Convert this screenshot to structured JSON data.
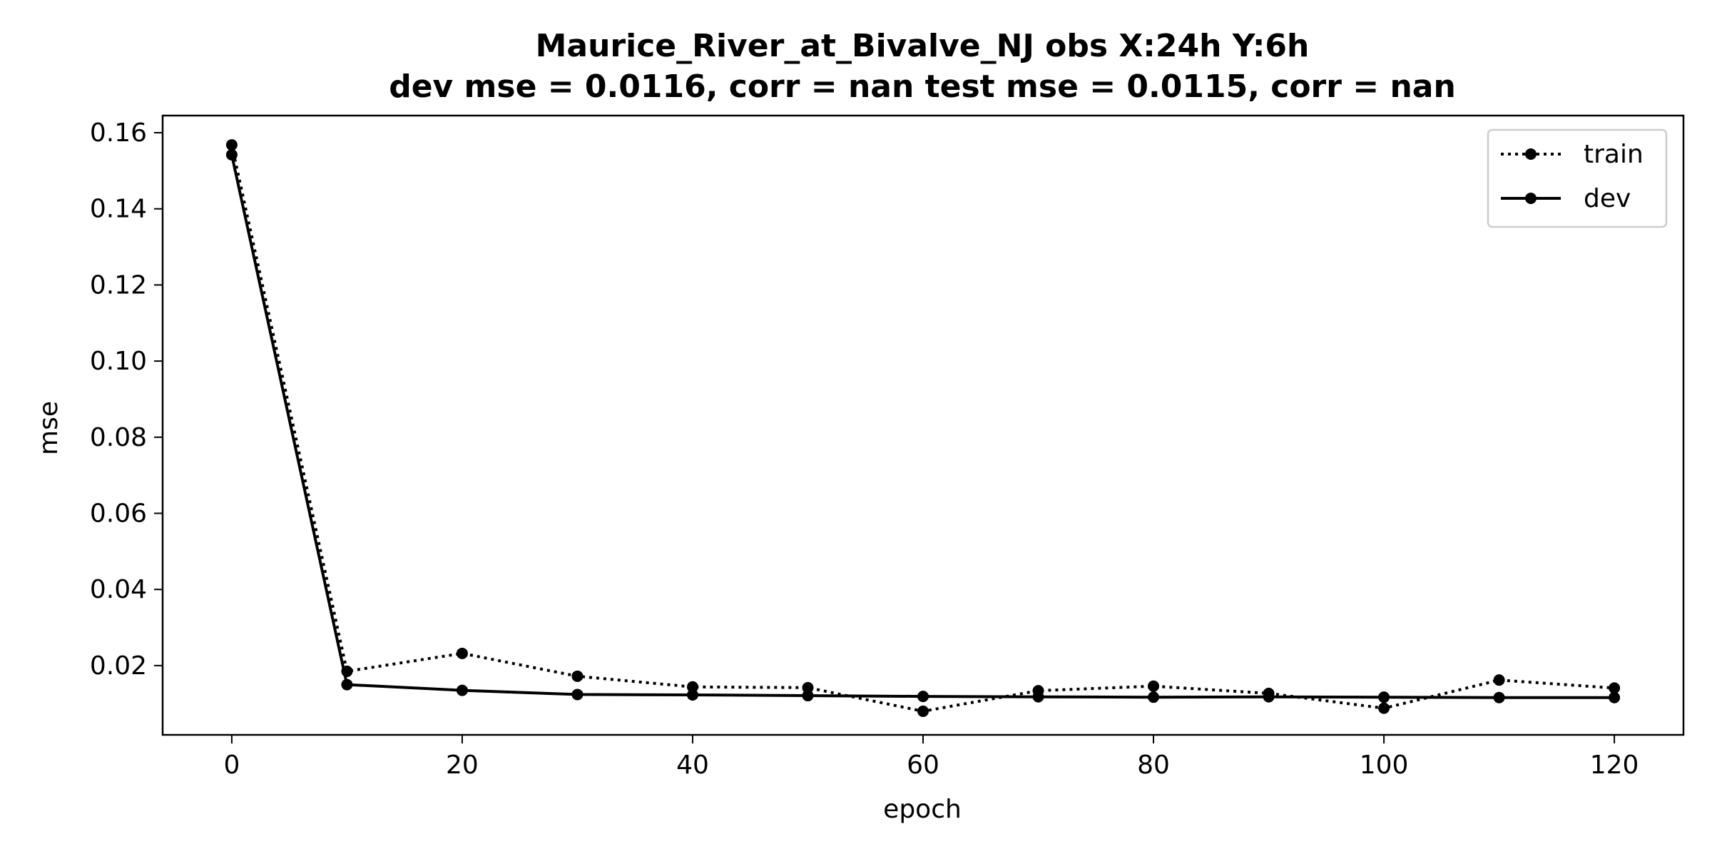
{
  "chart_data": {
    "type": "line",
    "title": "Maurice_River_at_Bivalve_NJ   obs   X:24h   Y:6h",
    "subtitle": "dev mse = 0.0116, corr = nan   test mse = 0.0115, corr = nan",
    "xlabel": "epoch",
    "ylabel": "mse",
    "xlim": [
      -6,
      126
    ],
    "ylim": [
      0.0018,
      0.1645
    ],
    "x_ticks": [
      0,
      20,
      40,
      60,
      80,
      100,
      120
    ],
    "x_tick_labels": [
      "0",
      "20",
      "40",
      "60",
      "80",
      "100",
      "120"
    ],
    "y_ticks": [
      0.02,
      0.04,
      0.06,
      0.08,
      0.1,
      0.12,
      0.14,
      0.16
    ],
    "y_tick_labels": [
      "0.02",
      "0.04",
      "0.06",
      "0.08",
      "0.10",
      "0.12",
      "0.14",
      "0.16"
    ],
    "grid": false,
    "legend": "upper right",
    "x": [
      0,
      10,
      20,
      30,
      40,
      50,
      60,
      70,
      80,
      90,
      100,
      110,
      120
    ],
    "series": [
      {
        "name": "train",
        "line_style": "dotted",
        "marker": "circle",
        "color": "#000000",
        "values": [
          0.1568,
          0.0185,
          0.0232,
          0.0172,
          0.0144,
          0.0142,
          0.008,
          0.0134,
          0.0146,
          0.0127,
          0.0088,
          0.0162,
          0.0141
        ]
      },
      {
        "name": "dev",
        "line_style": "solid",
        "marker": "circle",
        "color": "#000000",
        "values": [
          0.1542,
          0.015,
          0.0135,
          0.0124,
          0.0123,
          0.0121,
          0.0119,
          0.0118,
          0.0117,
          0.0118,
          0.0117,
          0.0116,
          0.0116
        ]
      }
    ]
  }
}
